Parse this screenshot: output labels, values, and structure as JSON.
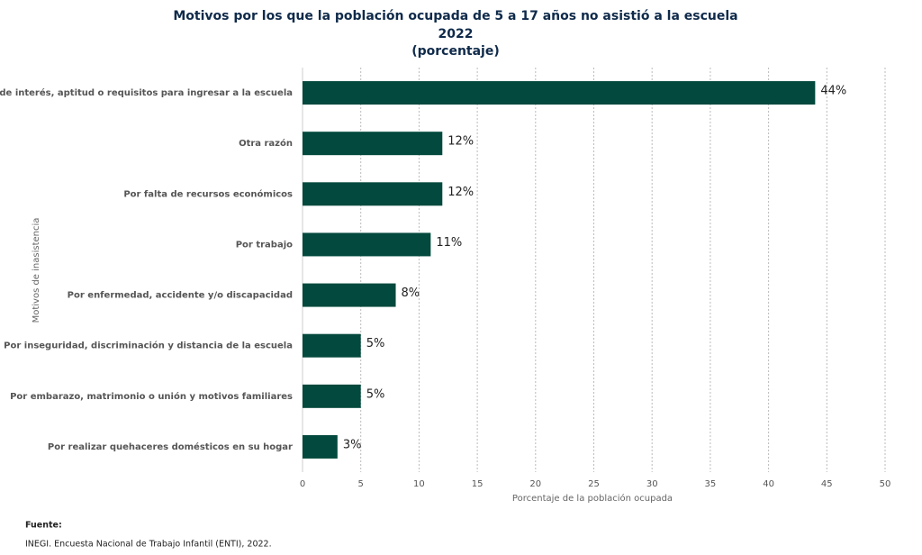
{
  "chart_data": {
    "type": "bar",
    "orientation": "horizontal",
    "title": "Motivos por los que la población ocupada de 5 a 17 años no asistió a la escuela",
    "subtitle": "2022",
    "unit_note": "(porcentaje)",
    "categories": [
      "Por falta de interés, aptitud o requisitos para ingresar a la escuela",
      "Otra razón",
      "Por falta de recursos económicos",
      "Por trabajo",
      "Por enfermedad, accidente y/o discapacidad",
      "Por inseguridad, discriminación y distancia de la escuela",
      "Por embarazo, matrimonio o unión y motivos familiares",
      "Por realizar quehaceres domésticos en su hogar"
    ],
    "values": [
      44,
      12,
      12,
      11,
      8,
      5,
      5,
      3
    ],
    "value_labels": [
      "44%",
      "12%",
      "12%",
      "11%",
      "8%",
      "5%",
      "5%",
      "3%"
    ],
    "color": "#03493d",
    "xlim": [
      0,
      50
    ],
    "xticks": [
      0,
      5,
      10,
      15,
      20,
      25,
      30,
      35,
      40,
      45,
      50
    ],
    "xlabel": "Porcentaje de la población ocupada",
    "ylabel": "Motivos de inasistencia",
    "grid": true
  },
  "footer": {
    "heading": "Fuente:",
    "text": "INEGI. Encuesta Nacional de Trabajo Infantil (ENTI), 2022."
  }
}
